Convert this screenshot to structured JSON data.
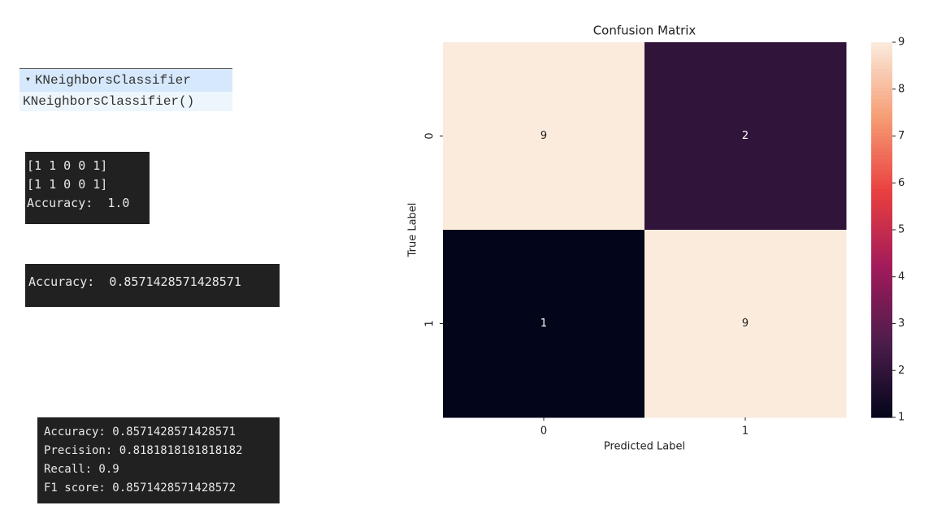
{
  "widget": {
    "title": "KNeighborsClassifier",
    "repr": "KNeighborsClassifier()"
  },
  "outputs": [
    {
      "lines": [
        "[1 1 0 0 1]",
        "[1 1 0 0 1]",
        "Accuracy:  1.0"
      ]
    },
    {
      "lines": [
        "Accuracy:  0.8571428571428571"
      ]
    },
    {
      "lines": [
        "Accuracy: 0.8571428571428571",
        "Precision: 0.8181818181818182",
        "Recall: 0.9",
        "F1 score: 0.8571428571428572"
      ]
    }
  ],
  "chart_data": {
    "type": "heatmap",
    "title": "Confusion Matrix",
    "x_label": "Predicted Label",
    "y_label": "True Label",
    "x_categories": [
      "0",
      "1"
    ],
    "y_categories": [
      "0",
      "1"
    ],
    "values": [
      [
        9,
        2
      ],
      [
        1,
        9
      ]
    ],
    "colormap": "rocket",
    "clim": [
      1,
      9
    ],
    "cticks": [
      1,
      2,
      3,
      4,
      5,
      6,
      7,
      8,
      9
    ]
  }
}
